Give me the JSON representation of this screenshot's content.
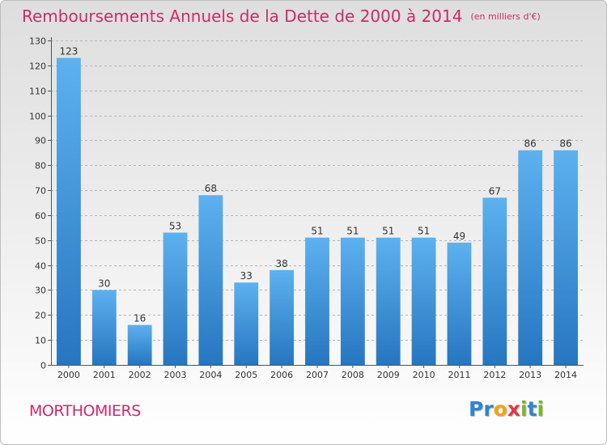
{
  "chart_data": {
    "type": "bar",
    "title": "Remboursements Annuels de la Dette de 2000 à 2014",
    "subtitle": "(en milliers d'€)",
    "categories": [
      "2000",
      "2001",
      "2002",
      "2003",
      "2004",
      "2005",
      "2006",
      "2007",
      "2008",
      "2009",
      "2010",
      "2011",
      "2012",
      "2013",
      "2014"
    ],
    "values": [
      123,
      30,
      16,
      53,
      68,
      33,
      38,
      51,
      51,
      51,
      51,
      49,
      67,
      86,
      86
    ],
    "data_labels": [
      "123",
      "30",
      "16",
      "53",
      "68",
      "33",
      "38",
      "51",
      "51",
      "51",
      "51",
      "49",
      "67",
      "86",
      "86"
    ],
    "ylim": [
      0,
      130
    ],
    "yticks": [
      0,
      10,
      20,
      30,
      40,
      50,
      60,
      70,
      80,
      90,
      100,
      110,
      120,
      130
    ],
    "ytick_labels": [
      "0",
      "10",
      "20",
      "30",
      "40",
      "50",
      "60",
      "70",
      "80",
      "90",
      "100",
      "110",
      "120",
      "130"
    ],
    "xlabel": "",
    "ylabel": "",
    "grid": true,
    "bar_color": "#3d93d8"
  },
  "footer": {
    "location": "MORTHOMIERS",
    "logo_letters": [
      "P",
      "r",
      "o",
      "x",
      "i",
      "t",
      "i"
    ],
    "logo_colors": [
      "#2f84d1",
      "#2f84d1",
      "#f2a31a",
      "#e23a45",
      "#7ab528",
      "#2f84d1",
      "#7ab528"
    ]
  },
  "colors": {
    "title": "#d02a6a",
    "location": "#d02a6a"
  }
}
